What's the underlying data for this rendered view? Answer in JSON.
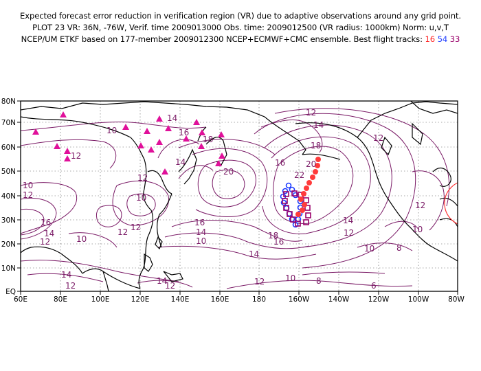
{
  "header": {
    "line1": "Expected forecast error reduction in verification region (VR) due to adaptive observations around any grid point.",
    "line2": "PLOT 23 VR: 36N, -76W, Verif. time 2009013000 Obs. time: 2009012500 (VR radius: 1000km) Norm: u,v,T",
    "line3_prefix": "NCEP/UM ETKF based on 177-member 2009012300 NCEP+ECMWF+CMC ensemble. Best flight tracks:",
    "track_a": "16",
    "track_b": "54",
    "track_c": "33"
  },
  "map": {
    "lat_labels": [
      "80N",
      "70N",
      "60N",
      "50N",
      "40N",
      "30N",
      "20N",
      "10N",
      "EQ"
    ],
    "lon_labels": [
      "60E",
      "80E",
      "100E",
      "120E",
      "140E",
      "160E",
      "180",
      "160W",
      "140W",
      "120W",
      "100W",
      "80W"
    ],
    "contour_labels": [
      "10",
      "12",
      "14",
      "16",
      "18",
      "20",
      "22",
      "8",
      "6"
    ],
    "colors": {
      "coast": "#000000",
      "contour": "#7a1a66",
      "track_16": "#ff3333",
      "track_54": "#1e3cff",
      "track_33": "#9a006a",
      "observation_sites": "#e0109a",
      "verification_region": "#ff3333"
    },
    "icons": {
      "observation_site": "triangle-icon",
      "track_16_marker": "filled-circle-icon",
      "track_54_marker": "open-circle-icon",
      "track_33_marker": "open-square-icon",
      "verification_region": "circle-outline-icon"
    }
  }
}
